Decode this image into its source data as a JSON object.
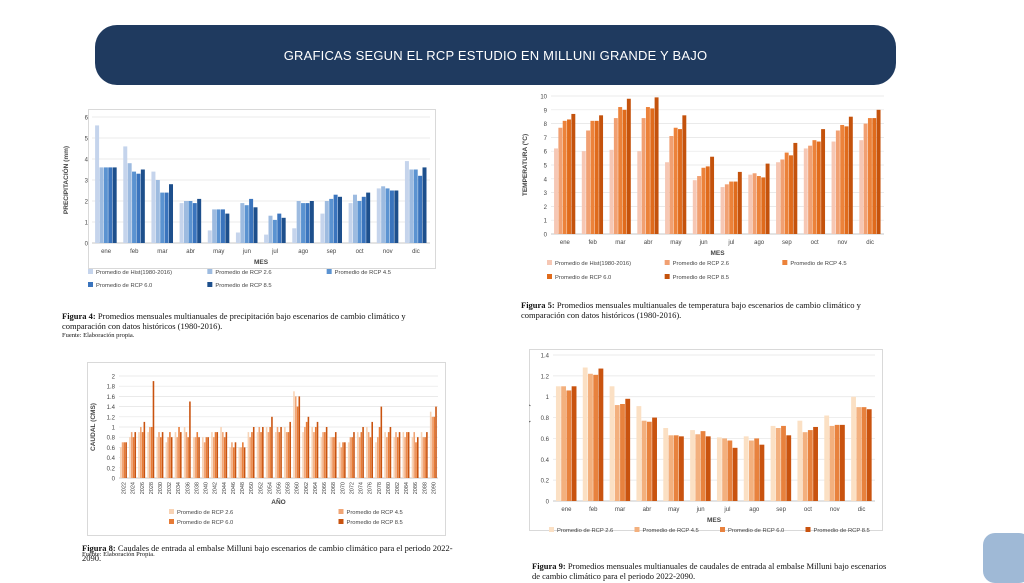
{
  "header": {
    "title": "GRAFICAS SEGUN EL RCP ESTUDIO EN MILLUNI GRANDE Y BAJO"
  },
  "figures": {
    "fig4": {
      "caption_label": "Figura 4:",
      "caption_text": "Promedios mensuales multianuales de precipitación bajo escenarios de cambio climático y comparación con datos históricos (1980-2016).",
      "source": "Fuente: Elaboración propia."
    },
    "fig5": {
      "caption_label": "Figura 5:",
      "caption_text": "Promedios mensuales multianuales de temperatura bajo escenarios de cambio climático y comparación con datos históricos (1980-2016)."
    },
    "fig8": {
      "caption_label": "Figura 8:",
      "caption_text": "Caudales de entrada al embalse Milluni bajo escenarios de cambio climático para el periodo 2022-2090.",
      "source": "Fuente: Elaboración Propia."
    },
    "fig9": {
      "caption_label": "Figura 9:",
      "caption_text": "Promedios mensuales multianuales de caudales de entrada al embalse Milluni bajo escenarios de cambio climático para el periodo 2022-2090."
    }
  },
  "chart_data": [
    {
      "id": "precip",
      "type": "bar",
      "ylabel": "PRECIPITACIÓN (mm)",
      "xlabel": "MES",
      "ylim": [
        0,
        6
      ],
      "yticks": [
        0,
        1,
        2,
        3,
        4,
        5,
        6
      ],
      "categories": [
        "ene",
        "feb",
        "mar",
        "abr",
        "may",
        "jun",
        "jul",
        "ago",
        "sep",
        "oct",
        "nov",
        "dic"
      ],
      "legend_position": "bottom",
      "series": [
        {
          "name": "Promedio de Hist(1980-2016)",
          "color": "#c5d4ec",
          "values": [
            5.6,
            4.6,
            3.4,
            1.9,
            0.6,
            0.5,
            0.4,
            0.7,
            1.4,
            1.9,
            2.6,
            3.9
          ]
        },
        {
          "name": "Promedio de RCP 2.6",
          "color": "#9dbbe0",
          "values": [
            3.6,
            3.8,
            3.0,
            2.0,
            1.6,
            1.9,
            1.3,
            2.0,
            2.0,
            2.3,
            2.7,
            3.5
          ]
        },
        {
          "name": "Promedio de RCP 4.5",
          "color": "#5b93d1",
          "values": [
            3.6,
            3.4,
            2.4,
            2.0,
            1.6,
            1.8,
            1.1,
            1.9,
            2.1,
            2.0,
            2.6,
            3.5
          ]
        },
        {
          "name": "Promedio de RCP 6.0",
          "color": "#3a74bd",
          "values": [
            3.6,
            3.3,
            2.4,
            1.9,
            1.6,
            2.1,
            1.4,
            1.9,
            2.3,
            2.2,
            2.5,
            3.2
          ]
        },
        {
          "name": "Promedio de RCP 8.5",
          "color": "#1d4f8c",
          "values": [
            3.6,
            3.5,
            2.8,
            2.1,
            1.4,
            1.7,
            1.2,
            2.0,
            2.2,
            2.4,
            2.5,
            3.6
          ]
        }
      ]
    },
    {
      "id": "temp",
      "type": "bar",
      "ylabel": "TEMPERATURA (ºC)",
      "xlabel": "MES",
      "ylim": [
        0,
        10
      ],
      "yticks": [
        0,
        1,
        2,
        3,
        4,
        5,
        6,
        7,
        8,
        9,
        10
      ],
      "categories": [
        "ene",
        "feb",
        "mar",
        "abr",
        "may",
        "jun",
        "jul",
        "ago",
        "sep",
        "oct",
        "nov",
        "dic"
      ],
      "legend_position": "bottom",
      "series": [
        {
          "name": "Promedio de Hist(1980-2016)",
          "color": "#f6c7b4",
          "values": [
            6.2,
            6.0,
            6.1,
            6.0,
            5.2,
            3.9,
            3.4,
            4.3,
            5.2,
            6.2,
            6.7,
            6.8
          ]
        },
        {
          "name": "Promedio de RCP 2.6",
          "color": "#f1a072",
          "values": [
            7.7,
            7.5,
            8.4,
            8.4,
            7.1,
            4.2,
            3.6,
            4.4,
            5.4,
            6.4,
            7.5,
            8.0
          ]
        },
        {
          "name": "Promedio de RCP 4.5",
          "color": "#ec823a",
          "values": [
            8.2,
            8.2,
            9.2,
            9.2,
            7.7,
            4.8,
            3.8,
            4.2,
            5.9,
            6.8,
            7.9,
            8.4
          ]
        },
        {
          "name": "Promedio de RCP 6.0",
          "color": "#e06b1c",
          "values": [
            8.3,
            8.2,
            9.0,
            9.1,
            7.6,
            4.9,
            3.8,
            4.1,
            5.7,
            6.7,
            7.8,
            8.4
          ]
        },
        {
          "name": "Promedio de RCP 8.5",
          "color": "#c4520c",
          "values": [
            8.7,
            8.6,
            9.8,
            9.9,
            8.6,
            5.6,
            4.5,
            5.1,
            6.6,
            7.6,
            8.5,
            9.0
          ]
        }
      ]
    },
    {
      "id": "caudal_anual",
      "type": "bar",
      "ylabel": "CAUDAL (CMS)",
      "xlabel": "AÑO",
      "ylim": [
        0,
        2
      ],
      "yticks": [
        0,
        0.2,
        0.4,
        0.6,
        0.8,
        1,
        1.2,
        1.4,
        1.6,
        1.8,
        2
      ],
      "x": [
        "2022",
        "2024",
        "2026",
        "2028",
        "2030",
        "2032",
        "2034",
        "2036",
        "2038",
        "2040",
        "2042",
        "2044",
        "2046",
        "2048",
        "2050",
        "2052",
        "2054",
        "2056",
        "2058",
        "2060",
        "2062",
        "2064",
        "2066",
        "2068",
        "2070",
        "2072",
        "2074",
        "2076",
        "2078",
        "2080",
        "2082",
        "2084",
        "2086",
        "2088",
        "2090"
      ],
      "legend_position": "bottom",
      "series": [
        {
          "name": "Promedio de RCP 2.6",
          "color": "#f8d3b5",
          "values": [
            0.6,
            0.8,
            0.9,
            0.9,
            0.8,
            0.7,
            0.9,
            1.0,
            0.8,
            0.8,
            0.9,
            1.0,
            0.6,
            0.6,
            0.9,
            0.9,
            1.0,
            0.9,
            1.0,
            1.7,
            0.9,
            1.0,
            0.8,
            0.8,
            0.7,
            0.7,
            0.9,
            1.0,
            0.7,
            0.9,
            0.8,
            0.9,
            0.8,
            0.9,
            1.3
          ]
        },
        {
          "name": "Promedio de RCP 4.5",
          "color": "#f1a575",
          "values": [
            0.7,
            0.9,
            1.0,
            1.0,
            0.9,
            0.8,
            0.8,
            0.9,
            0.8,
            0.7,
            0.8,
            0.9,
            0.7,
            0.6,
            0.8,
            1.0,
            0.9,
            1.0,
            0.9,
            1.6,
            1.0,
            0.9,
            0.9,
            0.8,
            0.6,
            0.8,
            0.8,
            0.9,
            0.8,
            0.8,
            0.9,
            0.8,
            0.9,
            0.8,
            1.2
          ]
        },
        {
          "name": "Promedio de RCP 6.0",
          "color": "#e77b36",
          "values": [
            0.7,
            0.8,
            0.9,
            1.0,
            0.8,
            0.9,
            1.0,
            0.8,
            0.9,
            0.8,
            0.9,
            0.8,
            0.6,
            0.7,
            0.9,
            0.9,
            1.0,
            0.9,
            0.9,
            1.4,
            1.1,
            1.0,
            0.9,
            0.8,
            0.7,
            0.8,
            0.9,
            0.8,
            1.0,
            0.9,
            0.8,
            0.9,
            0.7,
            0.8,
            1.2
          ]
        },
        {
          "name": "Promedio de RCP 8.5",
          "color": "#c9530f",
          "values": [
            0.7,
            0.9,
            1.1,
            1.9,
            0.9,
            0.8,
            0.9,
            1.5,
            0.8,
            0.8,
            0.9,
            0.9,
            0.7,
            0.6,
            1.0,
            1.0,
            1.2,
            1.0,
            1.1,
            1.6,
            1.2,
            1.1,
            1.0,
            0.9,
            0.7,
            0.9,
            1.0,
            1.1,
            1.4,
            1.0,
            0.9,
            0.9,
            0.8,
            0.9,
            1.4
          ]
        }
      ]
    },
    {
      "id": "caudal_mensual",
      "type": "bar",
      "ylabel": "CAUDAL (CMS)",
      "xlabel": "MES",
      "ylim": [
        0,
        1.4
      ],
      "yticks": [
        0,
        0.2,
        0.4,
        0.6,
        0.8,
        1,
        1.2,
        1.4
      ],
      "categories": [
        "ene",
        "feb",
        "mar",
        "abr",
        "may",
        "jun",
        "jul",
        "ago",
        "sep",
        "oct",
        "nov",
        "dic"
      ],
      "legend_position": "bottom",
      "series": [
        {
          "name": "Promedio de RCP 2.6",
          "color": "#fbe0c4",
          "values": [
            1.1,
            1.28,
            1.1,
            0.91,
            0.7,
            0.68,
            0.61,
            0.62,
            0.72,
            0.77,
            0.82,
            1.0
          ]
        },
        {
          "name": "Promedio de RCP 4.5",
          "color": "#f3b07e",
          "values": [
            1.1,
            1.22,
            0.92,
            0.77,
            0.63,
            0.64,
            0.6,
            0.58,
            0.7,
            0.66,
            0.72,
            0.9
          ]
        },
        {
          "name": "Promedio de RCP 6.0",
          "color": "#e8823e",
          "values": [
            1.06,
            1.21,
            0.93,
            0.76,
            0.63,
            0.67,
            0.58,
            0.6,
            0.72,
            0.68,
            0.73,
            0.9
          ]
        },
        {
          "name": "Promedio de RCP 8.5",
          "color": "#c9530f",
          "values": [
            1.1,
            1.27,
            0.98,
            0.8,
            0.62,
            0.62,
            0.51,
            0.54,
            0.63,
            0.71,
            0.73,
            0.88
          ]
        }
      ]
    }
  ]
}
